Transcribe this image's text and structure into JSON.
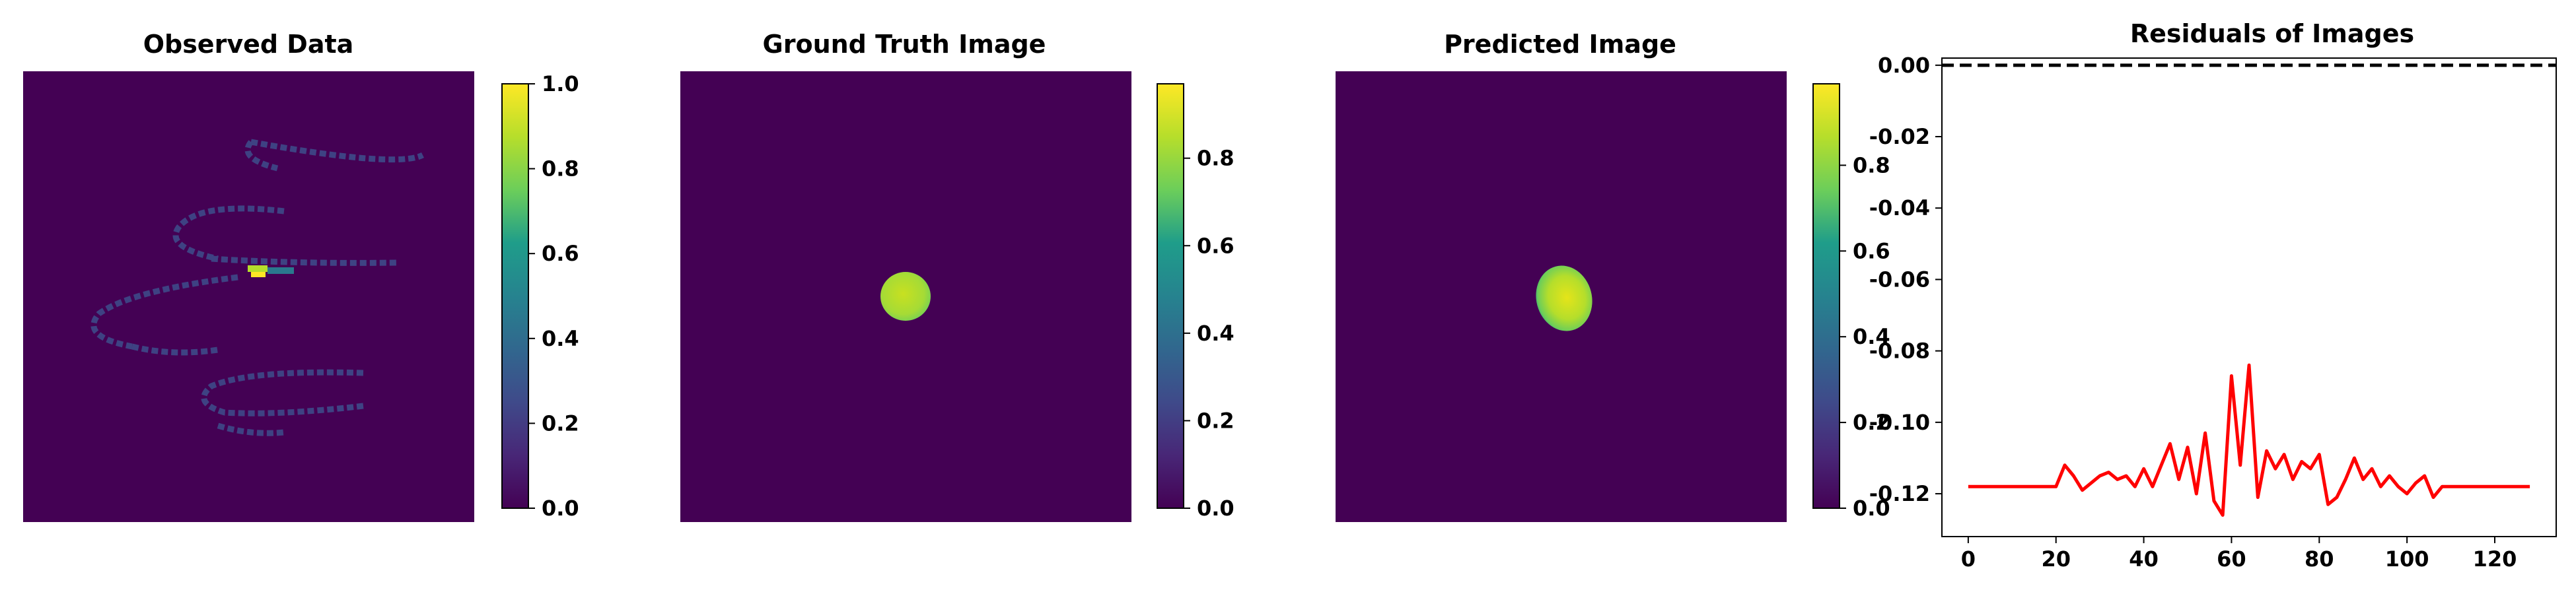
{
  "figure": {
    "panels": [
      {
        "title": "Observed Data"
      },
      {
        "title": "Ground Truth Image"
      },
      {
        "title": "Predicted Image"
      },
      {
        "title": "Residuals of Images"
      }
    ]
  },
  "colors": {
    "image_background": "#440154",
    "colormap": [
      "#440154",
      "#482777",
      "#3f4a8a",
      "#31678e",
      "#26838f",
      "#1f9d8a",
      "#6cce5a",
      "#b6de2b",
      "#fee825"
    ],
    "residual_line": "#ff0000",
    "reference_line": "#000000"
  },
  "chart_data": [
    {
      "type": "heatmap",
      "title": "Observed Data",
      "description_of_content": "sparse helical streaks of low-intensity pixels with a bright spot near the center",
      "colorbar": {
        "min": 0.0,
        "max": 1.0,
        "ticks": [
          "0.0",
          "0.2",
          "0.4",
          "0.6",
          "0.8",
          "1.0"
        ]
      },
      "axes": "off"
    },
    {
      "type": "heatmap",
      "title": "Ground Truth Image",
      "colorbar": {
        "min": 0.0,
        "max": 0.97,
        "ticks": [
          "0.0",
          "0.2",
          "0.4",
          "0.6",
          "0.8"
        ]
      },
      "axes": "off"
    },
    {
      "type": "heatmap",
      "title": "Predicted Image",
      "colorbar": {
        "min": 0.0,
        "max": 0.99,
        "ticks": [
          "0.0",
          "0.2",
          "0.4",
          "0.6",
          "0.8"
        ]
      },
      "axes": "off"
    },
    {
      "type": "line",
      "title": "Residuals of Images",
      "xlabel": "",
      "ylabel": "",
      "xlim": [
        -6,
        134
      ],
      "ylim": [
        -0.132,
        0.002
      ],
      "xticks": [
        "0",
        "20",
        "40",
        "60",
        "80",
        "100",
        "120"
      ],
      "yticks": [
        "0.00",
        "-0.02",
        "-0.04",
        "-0.06",
        "-0.08",
        "-0.10",
        "-0.12"
      ],
      "grid": false,
      "reference_line": {
        "y": 0.0,
        "style": "dashed"
      },
      "series": [
        {
          "x": [
            0,
            20,
            22,
            24,
            26,
            28,
            30,
            32,
            34,
            36,
            38,
            40,
            42,
            44,
            46,
            48,
            50,
            52,
            54,
            56,
            58,
            60,
            62,
            64,
            66,
            68,
            70,
            72,
            74,
            76,
            78,
            80,
            82,
            84,
            86,
            88,
            90,
            92,
            94,
            96,
            98,
            100,
            102,
            104,
            106,
            108,
            110,
            112,
            114,
            128
          ],
          "y": [
            -0.118,
            -0.118,
            -0.112,
            -0.115,
            -0.119,
            -0.117,
            -0.115,
            -0.114,
            -0.116,
            -0.115,
            -0.118,
            -0.113,
            -0.118,
            -0.112,
            -0.106,
            -0.116,
            -0.107,
            -0.12,
            -0.103,
            -0.122,
            -0.126,
            -0.087,
            -0.112,
            -0.084,
            -0.121,
            -0.108,
            -0.113,
            -0.109,
            -0.116,
            -0.111,
            -0.113,
            -0.109,
            -0.123,
            -0.121,
            -0.116,
            -0.11,
            -0.116,
            -0.113,
            -0.118,
            -0.115,
            -0.118,
            -0.12,
            -0.117,
            -0.115,
            -0.121,
            -0.118,
            -0.118,
            -0.118,
            -0.118,
            -0.118
          ]
        }
      ]
    }
  ]
}
